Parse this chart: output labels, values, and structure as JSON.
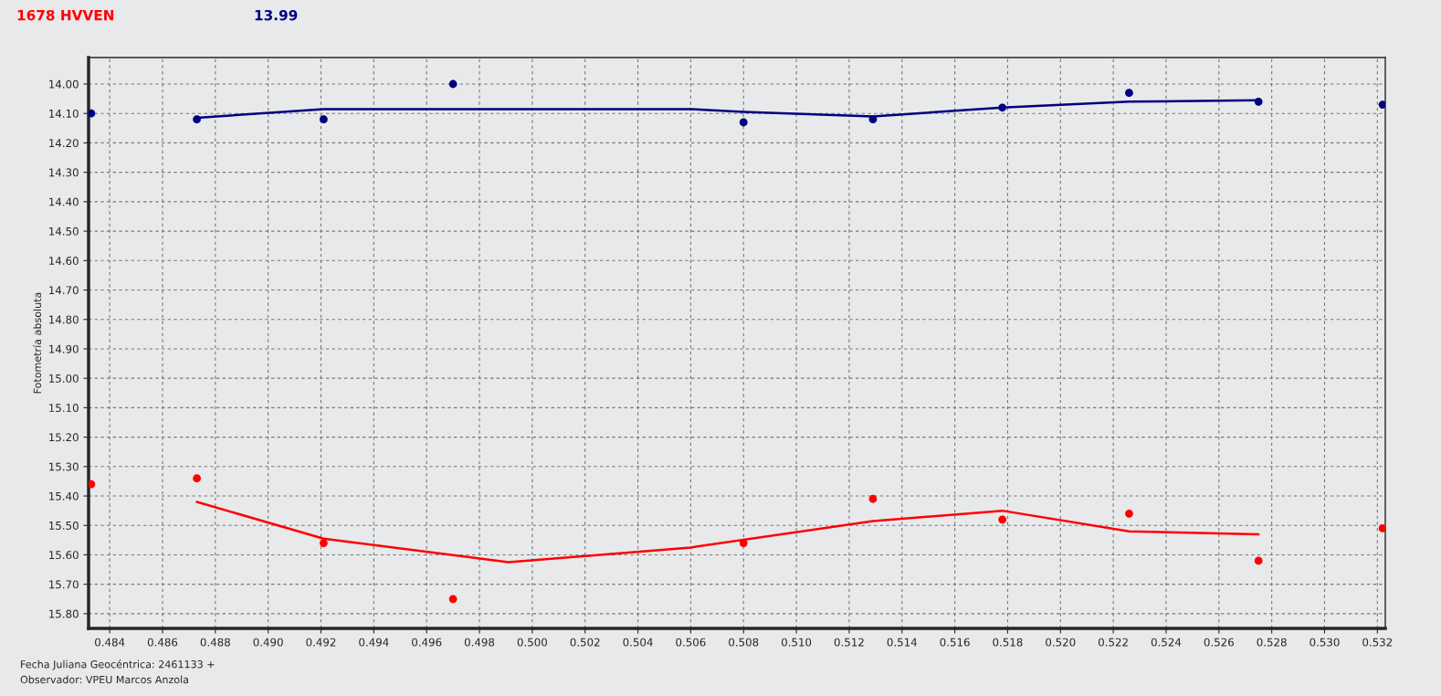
{
  "chart_data": {
    "type": "scatter",
    "title": "1678 HVVEN",
    "subtitle": "13.99",
    "ylabel": "Fotometría absoluta",
    "annotations": [
      "Fecha Juliana Geocéntrica: 2461133 +",
      "Observador: VPEU Marcos Anzola"
    ],
    "xlim": [
      0.4832,
      0.5323
    ],
    "ylim": [
      15.85,
      13.91
    ],
    "xticks": [
      {
        "value": 0.484,
        "label": "0.484"
      },
      {
        "value": 0.486,
        "label": "0.486"
      },
      {
        "value": 0.488,
        "label": "0.488"
      },
      {
        "value": 0.49,
        "label": "0.490"
      },
      {
        "value": 0.492,
        "label": "0.492"
      },
      {
        "value": 0.494,
        "label": "0.494"
      },
      {
        "value": 0.496,
        "label": "0.496"
      },
      {
        "value": 0.498,
        "label": "0.498"
      },
      {
        "value": 0.5,
        "label": "0.500"
      },
      {
        "value": 0.502,
        "label": "0.502"
      },
      {
        "value": 0.504,
        "label": "0.504"
      },
      {
        "value": 0.506,
        "label": "0.506"
      },
      {
        "value": 0.508,
        "label": "0.508"
      },
      {
        "value": 0.51,
        "label": "0.510"
      },
      {
        "value": 0.512,
        "label": "0.512"
      },
      {
        "value": 0.514,
        "label": "0.514"
      },
      {
        "value": 0.516,
        "label": "0.516"
      },
      {
        "value": 0.518,
        "label": "0.518"
      },
      {
        "value": 0.52,
        "label": "0.520"
      },
      {
        "value": 0.522,
        "label": "0.522"
      },
      {
        "value": 0.524,
        "label": "0.524"
      },
      {
        "value": 0.526,
        "label": "0.526"
      },
      {
        "value": 0.528,
        "label": "0.528"
      },
      {
        "value": 0.53,
        "label": "0.530"
      },
      {
        "value": 0.532,
        "label": "0.532"
      }
    ],
    "yticks": [
      {
        "value": 14.0,
        "label": "14.00"
      },
      {
        "value": 14.1,
        "label": "14.10"
      },
      {
        "value": 14.2,
        "label": "14.20"
      },
      {
        "value": 14.3,
        "label": "14.30"
      },
      {
        "value": 14.4,
        "label": "14.40"
      },
      {
        "value": 14.5,
        "label": "14.50"
      },
      {
        "value": 14.6,
        "label": "14.60"
      },
      {
        "value": 14.7,
        "label": "14.70"
      },
      {
        "value": 14.8,
        "label": "14.80"
      },
      {
        "value": 14.9,
        "label": "14.90"
      },
      {
        "value": 15.0,
        "label": "15.00"
      },
      {
        "value": 15.1,
        "label": "15.10"
      },
      {
        "value": 15.2,
        "label": "15.20"
      },
      {
        "value": 15.3,
        "label": "15.30"
      },
      {
        "value": 15.4,
        "label": "15.40"
      },
      {
        "value": 15.5,
        "label": "15.50"
      },
      {
        "value": 15.6,
        "label": "15.60"
      },
      {
        "value": 15.7,
        "label": "15.70"
      },
      {
        "value": 15.8,
        "label": "15.80"
      }
    ],
    "grid": true,
    "legend": false,
    "series": [
      {
        "marker": "circle",
        "color": "#000080",
        "x": [
          0.4833,
          0.4873,
          0.4921,
          0.497,
          0.508,
          0.5129,
          0.5178,
          0.5226,
          0.5275,
          0.5322
        ],
        "values": [
          14.1,
          14.12,
          14.12,
          14.0,
          14.13,
          14.12,
          14.08,
          14.03,
          14.06,
          14.07
        ]
      },
      {
        "type": "line",
        "marker": "none",
        "color": "#000080",
        "x": [
          0.4873,
          0.4921,
          0.506,
          0.508,
          0.5129,
          0.5178,
          0.5226,
          0.5275
        ],
        "values": [
          14.115,
          14.085,
          14.085,
          14.095,
          14.11,
          14.08,
          14.06,
          14.055
        ]
      },
      {
        "marker": "circle",
        "color": "#ff0000",
        "x": [
          0.4833,
          0.4873,
          0.4921,
          0.497,
          0.508,
          0.5129,
          0.5178,
          0.5226,
          0.5275,
          0.5322
        ],
        "values": [
          15.36,
          15.34,
          15.56,
          15.75,
          15.56,
          15.41,
          15.48,
          15.46,
          15.62,
          15.51
        ]
      },
      {
        "type": "line",
        "marker": "none",
        "color": "#ff0000",
        "x": [
          0.4873,
          0.4921,
          0.4991,
          0.506,
          0.5129,
          0.5178,
          0.5226,
          0.5275
        ],
        "values": [
          15.42,
          15.545,
          15.625,
          15.575,
          15.485,
          15.45,
          15.52,
          15.53
        ]
      }
    ]
  }
}
